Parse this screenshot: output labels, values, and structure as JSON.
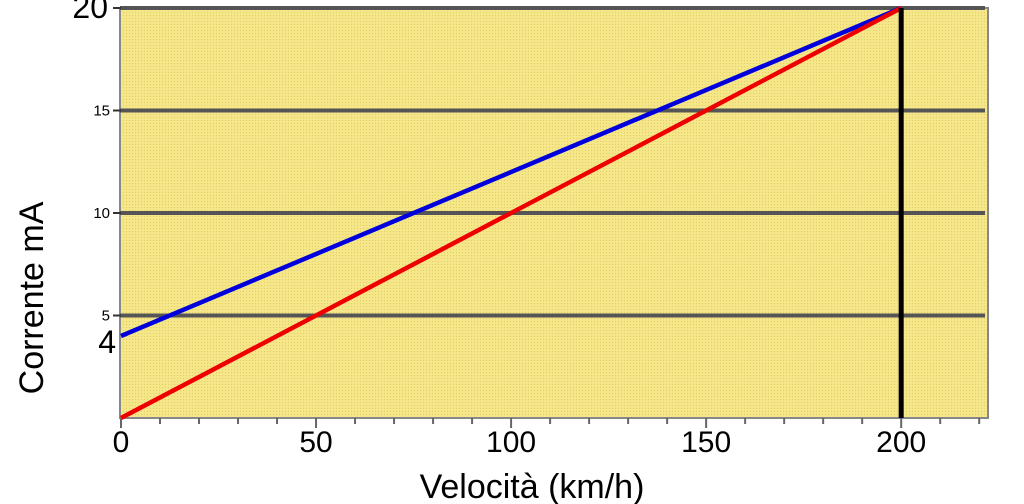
{
  "chart_data": {
    "type": "line",
    "title": "",
    "xlabel": "Velocità (km/h)",
    "ylabel": "Corrente mA",
    "xlim": [
      0,
      222
    ],
    "ylim": [
      0,
      20
    ],
    "x_ticks": [
      0,
      50,
      100,
      150,
      200
    ],
    "x_minor_step": 10,
    "y_ticks": [
      5,
      10,
      15,
      20
    ],
    "y_extra_label": "4",
    "grid": "horizontal",
    "legend": "none",
    "series": [
      {
        "color": "#0000dd",
        "x": [
          0,
          200
        ],
        "y": [
          4,
          20
        ]
      },
      {
        "color": "#ee0000",
        "x": [
          0,
          200
        ],
        "y": [
          0,
          20
        ]
      }
    ],
    "vertical_marker": {
      "x": 200,
      "y": [
        0,
        20
      ],
      "color": "#000000"
    },
    "plot_background": "#f5e68a",
    "grid_color": "#555555"
  }
}
